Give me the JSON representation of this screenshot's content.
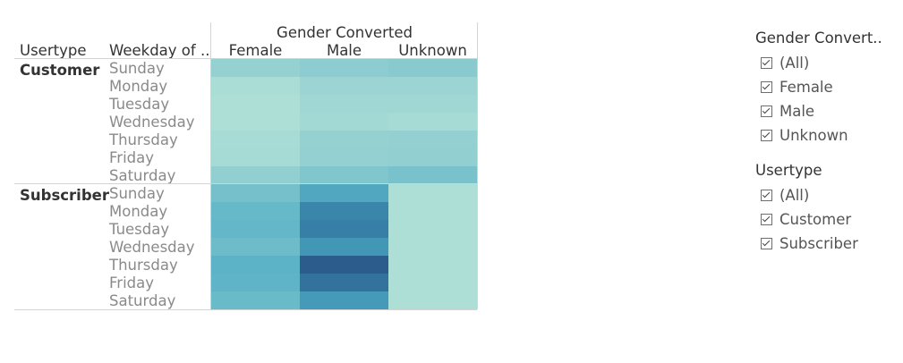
{
  "chart_data": {
    "type": "heatmap",
    "column_header": "Gender Converted",
    "row_header_1": "Usertype",
    "row_header_2": "Weekday of ..",
    "columns": [
      "Female",
      "Male",
      "Unknown"
    ],
    "groups": [
      {
        "name": "Customer",
        "days": [
          "Sunday",
          "Monday",
          "Tuesday",
          "Wednesday",
          "Thursday",
          "Friday",
          "Saturday"
        ],
        "values": [
          [
            0.2,
            0.25,
            0.27
          ],
          [
            0.08,
            0.17,
            0.17
          ],
          [
            0.06,
            0.14,
            0.14
          ],
          [
            0.06,
            0.12,
            0.11
          ],
          [
            0.1,
            0.2,
            0.21
          ],
          [
            0.11,
            0.21,
            0.22
          ],
          [
            0.22,
            0.32,
            0.36
          ]
        ]
      },
      {
        "name": "Subscriber",
        "days": [
          "Sunday",
          "Monday",
          "Tuesday",
          "Wednesday",
          "Thursday",
          "Friday",
          "Saturday"
        ],
        "values": [
          [
            0.38,
            0.6,
            0.06
          ],
          [
            0.46,
            0.8,
            0.06
          ],
          [
            0.48,
            0.83,
            0.06
          ],
          [
            0.42,
            0.72,
            0.06
          ],
          [
            0.52,
            0.97,
            0.06
          ],
          [
            0.5,
            0.88,
            0.06
          ],
          [
            0.44,
            0.7,
            0.06
          ]
        ]
      }
    ],
    "color_scale": [
      "#b8e5d9",
      "#8dccd0",
      "#5fb5c7",
      "#3e93b5",
      "#295485"
    ]
  },
  "filters": [
    {
      "title": "Gender Convert..",
      "items": [
        "(All)",
        "Female",
        "Male",
        "Unknown"
      ]
    },
    {
      "title": "Usertype",
      "items": [
        "(All)",
        "Customer",
        "Subscriber"
      ]
    }
  ]
}
